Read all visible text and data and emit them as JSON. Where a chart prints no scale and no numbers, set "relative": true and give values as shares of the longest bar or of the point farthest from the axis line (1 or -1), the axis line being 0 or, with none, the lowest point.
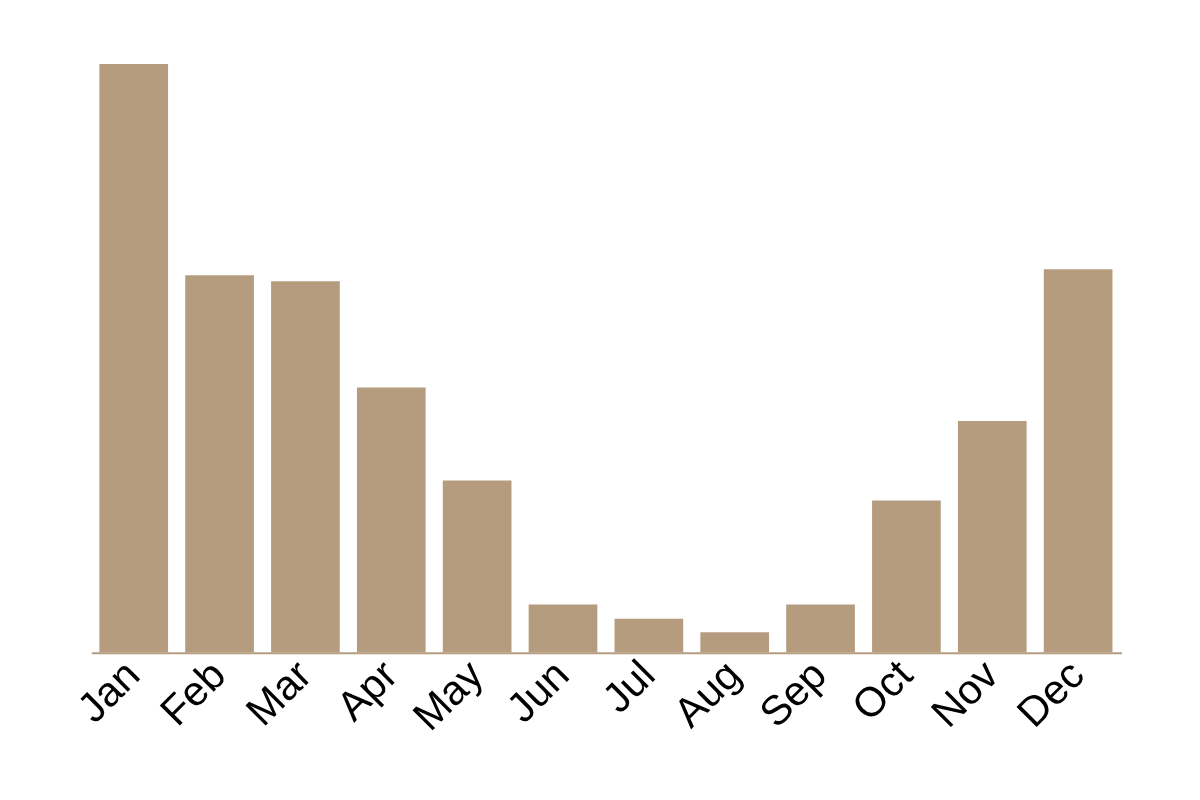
{
  "chart_data": {
    "type": "bar",
    "relative": true,
    "categories": [
      "Jan",
      "Feb",
      "Mar",
      "Apr",
      "May",
      "Jun",
      "Jul",
      "Aug",
      "Sep",
      "Oct",
      "Nov",
      "Dec"
    ],
    "values": [
      1,
      0.641,
      0.631,
      0.45,
      0.292,
      0.081,
      0.057,
      0.034,
      0.081,
      0.258,
      0.393,
      0.651
    ],
    "color": "#b59c7f"
  }
}
